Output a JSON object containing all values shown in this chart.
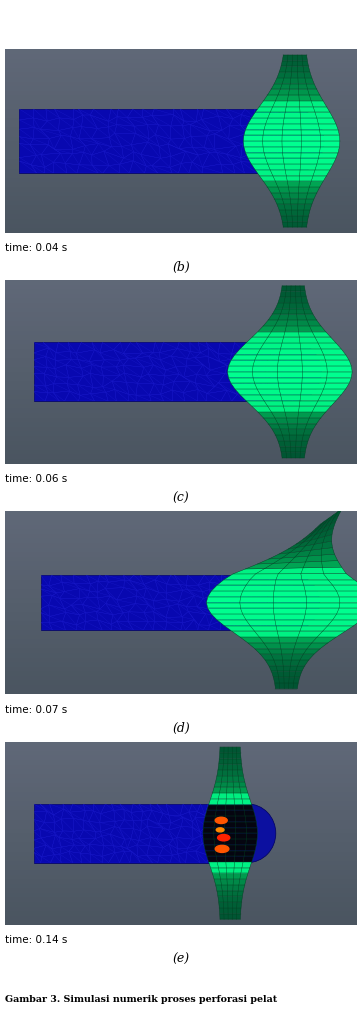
{
  "panels": [
    {
      "label": "(b)",
      "time_text": "time: 0.04 s",
      "tag": "b"
    },
    {
      "label": "(c)",
      "time_text": "time: 0.06 s",
      "tag": "c"
    },
    {
      "label": "(d)",
      "time_text": "time: 0.07 s",
      "tag": "d"
    },
    {
      "label": "(e)",
      "time_text": "time: 0.14 s",
      "tag": "e"
    }
  ],
  "caption": "Gambar 3. Simulasi numerik proses perforasi pelat",
  "bg_top": "#606878",
  "bg_bottom": "#4a5560",
  "proj_color_main": "#0808b0",
  "proj_color_dark": "#000060",
  "proj_mesh_color": "#1818c8",
  "plate_color_main": "#00c060",
  "plate_color_dark": "#006030",
  "plate_mesh_color": "#004020",
  "plate_mesh_light": "#20e080",
  "time_color": "#000000",
  "label_color": "#000000",
  "caption_color": "#000000",
  "bg_figure": "#ffffff"
}
